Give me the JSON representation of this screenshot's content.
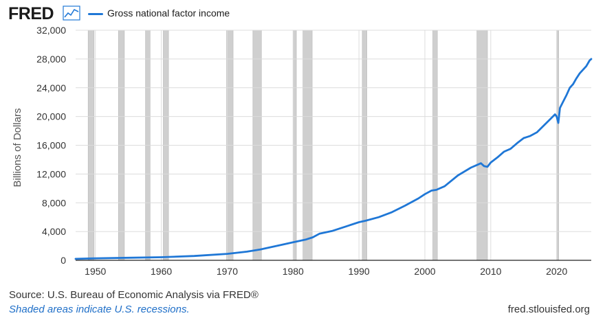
{
  "header": {
    "logo_text": "FRED",
    "logo_icon": "line-chart-icon",
    "legend_label": "Gross national factor income"
  },
  "footer": {
    "source": "U.S. Bureau of Economic Analysis via FRED®",
    "source_prefix": "Source: ",
    "note": "Shaded areas indicate U.S. recessions.",
    "url": "fred.stlouisfed.org"
  },
  "colors": {
    "series": "#1f77d6",
    "recession": "#cfcfcf",
    "grid": "#dcdcdc"
  },
  "chart_data": {
    "type": "line",
    "title": "",
    "xlabel": "",
    "ylabel": "Billions of Dollars",
    "xlim": [
      1947.0,
      2025.25
    ],
    "ylim": [
      0,
      32000
    ],
    "y_ticks": [
      0,
      4000,
      8000,
      12000,
      16000,
      20000,
      24000,
      28000,
      32000
    ],
    "y_tick_labels": [
      "0",
      "4,000",
      "8,000",
      "12,000",
      "16,000",
      "20,000",
      "24,000",
      "28,000",
      "32,000"
    ],
    "x_ticks": [
      1950,
      1960,
      1970,
      1980,
      1990,
      2000,
      2010,
      2020
    ],
    "x_tick_labels": [
      "1950",
      "1960",
      "1970",
      "1980",
      "1990",
      "2000",
      "2010",
      "2020"
    ],
    "grid": true,
    "legend_position": "top-left",
    "recessions": [
      [
        1948.9,
        1949.8
      ],
      [
        1953.5,
        1954.4
      ],
      [
        1957.6,
        1958.3
      ],
      [
        1960.3,
        1961.1
      ],
      [
        1969.9,
        1970.9
      ],
      [
        1973.9,
        1975.2
      ],
      [
        1980.0,
        1980.5
      ],
      [
        1981.5,
        1982.9
      ],
      [
        1990.5,
        1991.2
      ],
      [
        2001.2,
        2001.9
      ],
      [
        2007.9,
        2009.5
      ],
      [
        2020.1,
        2020.3
      ]
    ],
    "series": [
      {
        "name": "Gross national factor income",
        "x": [
          1947.0,
          1950.0,
          1955.0,
          1960.0,
          1965.0,
          1970.0,
          1973.0,
          1975.0,
          1978.0,
          1980.0,
          1982.0,
          1983.0,
          1984.0,
          1986.0,
          1988.0,
          1990.0,
          1991.0,
          1993.0,
          1995.0,
          1997.0,
          1999.0,
          2000.0,
          2001.0,
          2001.75,
          2003.0,
          2005.0,
          2007.0,
          2008.0,
          2008.5,
          2009.0,
          2009.5,
          2010.0,
          2011.0,
          2012.0,
          2013.0,
          2014.0,
          2015.0,
          2016.0,
          2017.0,
          2018.0,
          2019.0,
          2019.75,
          2020.0,
          2020.25,
          2020.5,
          2021.0,
          2021.5,
          2022.0,
          2022.5,
          2023.0,
          2023.5,
          2024.0,
          2024.5,
          2025.0,
          2025.25
        ],
        "values": [
          200,
          280,
          350,
          430,
          600,
          900,
          1200,
          1500,
          2100,
          2500,
          2900,
          3200,
          3700,
          4100,
          4700,
          5300,
          5500,
          6000,
          6700,
          7600,
          8600,
          9200,
          9700,
          9800,
          10300,
          11800,
          12900,
          13300,
          13500,
          13100,
          13000,
          13600,
          14300,
          15100,
          15500,
          16300,
          17000,
          17300,
          17800,
          18700,
          19600,
          20300,
          20000,
          19100,
          21200,
          22100,
          23000,
          24000,
          24500,
          25300,
          26000,
          26500,
          27000,
          27800,
          28000
        ]
      }
    ]
  }
}
